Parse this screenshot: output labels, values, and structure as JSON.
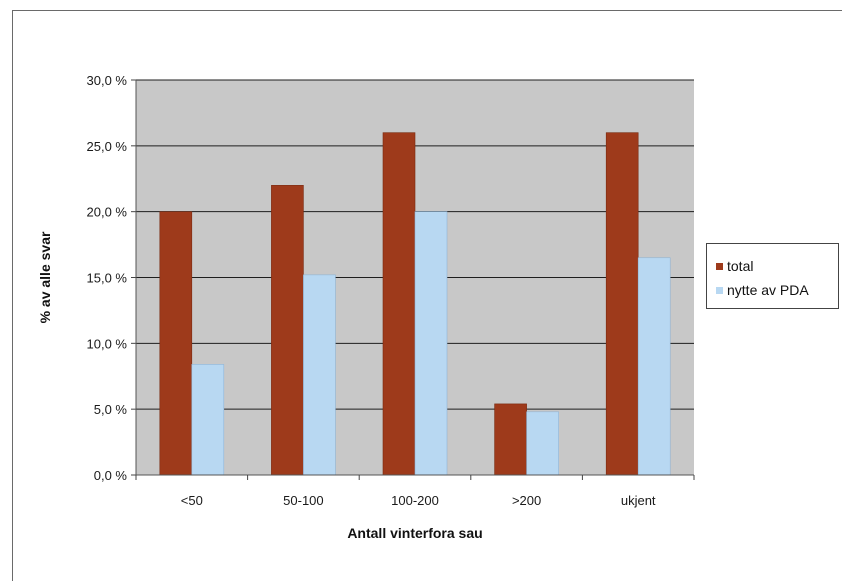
{
  "chart_data": {
    "type": "bar",
    "xlabel": "Antall vinterfora sau",
    "ylabel": "% av alle svar",
    "categories": [
      "<50",
      "50-100",
      "100-200",
      ">200",
      "ukjent"
    ],
    "series": [
      {
        "name": "total",
        "values": [
          20.0,
          22.0,
          26.0,
          5.4,
          26.0
        ],
        "color": "#9e3a1b"
      },
      {
        "name": "nytte av PDA",
        "values": [
          8.4,
          15.2,
          20.0,
          4.8,
          16.5
        ],
        "color": "#b8d8f2"
      }
    ],
    "ylim": [
      0,
      30
    ],
    "yticks": [
      "0,0 %",
      "5,0 %",
      "10,0 %",
      "15,0 %",
      "20,0 %",
      "25,0 %",
      "30,0 %"
    ],
    "grid": true,
    "legend_position": "right",
    "plot_background": "#c8c8c8"
  }
}
